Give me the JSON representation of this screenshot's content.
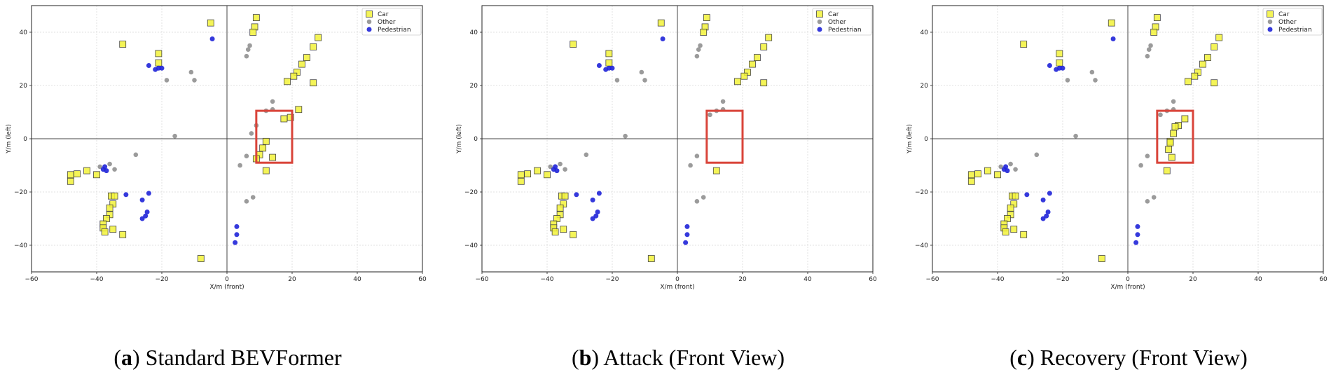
{
  "shared": {
    "type": "scatter",
    "xlabel": "X/m (front)",
    "ylabel": "Y/m (left)",
    "xlim": [
      -60,
      60
    ],
    "ylim": [
      -50,
      50
    ],
    "xticks": [
      -60,
      -40,
      -20,
      0,
      20,
      40,
      60
    ],
    "yticks": [
      -40,
      -20,
      0,
      20,
      40
    ],
    "grid": true,
    "legend": "top-right",
    "colors": {
      "Car": "#f2f23a",
      "Other": "#8a8a8a",
      "Pedestrian": "#1f24d8",
      "box": "#d9443a"
    }
  },
  "chart_data": [
    {
      "caption_letter": "a",
      "caption_text": " Standard BEVFormer",
      "highlight_box": {
        "x0": 9,
        "x1": 20,
        "y0": -9,
        "y1": 10.5
      },
      "series": [
        {
          "name": "Car",
          "points": [
            [
              -48,
              -13.5
            ],
            [
              -48,
              -16
            ],
            [
              -46,
              -13.2
            ],
            [
              -43,
              -12
            ],
            [
              -40,
              -13.5
            ],
            [
              -32,
              35.5
            ],
            [
              -21,
              32
            ],
            [
              -21,
              28.5
            ],
            [
              -35.5,
              -21.5
            ],
            [
              -34.5,
              -21.5
            ],
            [
              -35,
              -24.5
            ],
            [
              -36,
              -26
            ],
            [
              -36,
              -28.5
            ],
            [
              -37,
              -30
            ],
            [
              -38,
              -32
            ],
            [
              -38,
              -33.5
            ],
            [
              -37.5,
              -35
            ],
            [
              -35,
              -34
            ],
            [
              -32,
              -36
            ],
            [
              -5,
              43.5
            ],
            [
              -8,
              -45
            ],
            [
              9,
              45.5
            ],
            [
              8.5,
              42
            ],
            [
              8,
              40
            ],
            [
              28,
              38
            ],
            [
              26.5,
              34.5
            ],
            [
              24.5,
              30.5
            ],
            [
              23,
              28
            ],
            [
              21.5,
              25
            ],
            [
              20.5,
              23.5
            ],
            [
              18.5,
              21.5
            ],
            [
              26.5,
              21
            ],
            [
              22,
              11
            ],
            [
              17.5,
              7.5
            ],
            [
              19.5,
              8
            ],
            [
              12,
              -1
            ],
            [
              11,
              -3.5
            ],
            [
              10,
              -6
            ],
            [
              9,
              -7.5
            ],
            [
              14,
              -7
            ],
            [
              12,
              -12
            ]
          ]
        },
        {
          "name": "Other",
          "points": [
            [
              6,
              31
            ],
            [
              6.5,
              33.5
            ],
            [
              7,
              35
            ],
            [
              -11,
              25
            ],
            [
              -10,
              22
            ],
            [
              -18.5,
              22
            ],
            [
              -39,
              -10.5
            ],
            [
              -36,
              -9.5
            ],
            [
              -34.5,
              -11.5
            ],
            [
              -28,
              -6
            ],
            [
              -16,
              1
            ],
            [
              7.5,
              2
            ],
            [
              6,
              -6.5
            ],
            [
              4,
              -10
            ],
            [
              6,
              -23.5
            ],
            [
              8,
              -22
            ],
            [
              12,
              10.5
            ],
            [
              14,
              11
            ],
            [
              14,
              14
            ],
            [
              9,
              5
            ]
          ]
        },
        {
          "name": "Pedestrian",
          "points": [
            [
              -24,
              27.5
            ],
            [
              -22,
              26
            ],
            [
              -21,
              26.5
            ],
            [
              -20,
              26.5
            ],
            [
              -38,
              -11.5
            ],
            [
              -37,
              -12
            ],
            [
              -37.5,
              -10.5
            ],
            [
              -31,
              -21
            ],
            [
              -26,
              -23
            ],
            [
              -24,
              -20.5
            ],
            [
              -24.5,
              -27.5
            ],
            [
              -25,
              -29
            ],
            [
              -26,
              -30
            ],
            [
              -4.5,
              37.5
            ],
            [
              3,
              -33
            ],
            [
              3,
              -36
            ],
            [
              2.5,
              -39
            ]
          ]
        }
      ]
    },
    {
      "caption_letter": "b",
      "caption_text": " Attack (Front View)",
      "highlight_box": {
        "x0": 9,
        "x1": 20,
        "y0": -9,
        "y1": 10.5
      },
      "series": [
        {
          "name": "Car",
          "points": [
            [
              -48,
              -13.5
            ],
            [
              -48,
              -16
            ],
            [
              -46,
              -13.2
            ],
            [
              -43,
              -12
            ],
            [
              -40,
              -13.5
            ],
            [
              -32,
              35.5
            ],
            [
              -21,
              32
            ],
            [
              -21,
              28.5
            ],
            [
              -35.5,
              -21.5
            ],
            [
              -34.5,
              -21.5
            ],
            [
              -35,
              -24.5
            ],
            [
              -36,
              -26
            ],
            [
              -36,
              -28.5
            ],
            [
              -37,
              -30
            ],
            [
              -38,
              -32
            ],
            [
              -38,
              -33.5
            ],
            [
              -37.5,
              -35
            ],
            [
              -35,
              -34
            ],
            [
              -32,
              -36
            ],
            [
              -5,
              43.5
            ],
            [
              -8,
              -45
            ],
            [
              9,
              45.5
            ],
            [
              8.5,
              42
            ],
            [
              8,
              40
            ],
            [
              28,
              38
            ],
            [
              26.5,
              34.5
            ],
            [
              24.5,
              30.5
            ],
            [
              23,
              28
            ],
            [
              21.5,
              25
            ],
            [
              20.5,
              23.5
            ],
            [
              18.5,
              21.5
            ],
            [
              26.5,
              21
            ],
            [
              12,
              -12
            ]
          ]
        },
        {
          "name": "Other",
          "points": [
            [
              6,
              31
            ],
            [
              6.5,
              33.5
            ],
            [
              7,
              35
            ],
            [
              -11,
              25
            ],
            [
              -10,
              22
            ],
            [
              -18.5,
              22
            ],
            [
              -39,
              -10.5
            ],
            [
              -36,
              -9.5
            ],
            [
              -34.5,
              -11.5
            ],
            [
              -28,
              -6
            ],
            [
              -16,
              1
            ],
            [
              6,
              -6.5
            ],
            [
              4,
              -10
            ],
            [
              6,
              -23.5
            ],
            [
              8,
              -22
            ],
            [
              12,
              10.5
            ],
            [
              14,
              11
            ],
            [
              14,
              14
            ],
            [
              10,
              9
            ]
          ]
        },
        {
          "name": "Pedestrian",
          "points": [
            [
              -24,
              27.5
            ],
            [
              -22,
              26
            ],
            [
              -21,
              26.5
            ],
            [
              -20,
              26.5
            ],
            [
              -38,
              -11.5
            ],
            [
              -37,
              -12
            ],
            [
              -37.5,
              -10.5
            ],
            [
              -31,
              -21
            ],
            [
              -26,
              -23
            ],
            [
              -24,
              -20.5
            ],
            [
              -24.5,
              -27.5
            ],
            [
              -25,
              -29
            ],
            [
              -26,
              -30
            ],
            [
              -4.5,
              37.5
            ],
            [
              3,
              -33
            ],
            [
              3,
              -36
            ],
            [
              2.5,
              -39
            ]
          ]
        }
      ]
    },
    {
      "caption_letter": "c",
      "caption_text": " Recovery (Front View)",
      "highlight_box": {
        "x0": 9,
        "x1": 20,
        "y0": -9,
        "y1": 10.5
      },
      "series": [
        {
          "name": "Car",
          "points": [
            [
              -48,
              -13.5
            ],
            [
              -48,
              -16
            ],
            [
              -46,
              -13.2
            ],
            [
              -43,
              -12
            ],
            [
              -40,
              -13.5
            ],
            [
              -32,
              35.5
            ],
            [
              -21,
              32
            ],
            [
              -21,
              28.5
            ],
            [
              -35.5,
              -21.5
            ],
            [
              -34.5,
              -21.5
            ],
            [
              -35,
              -24.5
            ],
            [
              -36,
              -26
            ],
            [
              -36,
              -28.5
            ],
            [
              -37,
              -30
            ],
            [
              -38,
              -32
            ],
            [
              -38,
              -33.5
            ],
            [
              -37.5,
              -35
            ],
            [
              -35,
              -34
            ],
            [
              -32,
              -36
            ],
            [
              -5,
              43.5
            ],
            [
              -8,
              -45
            ],
            [
              9,
              45.5
            ],
            [
              8.5,
              42
            ],
            [
              8,
              40
            ],
            [
              28,
              38
            ],
            [
              26.5,
              34.5
            ],
            [
              24.5,
              30.5
            ],
            [
              23,
              28
            ],
            [
              21.5,
              25
            ],
            [
              20.5,
              23.5
            ],
            [
              18.5,
              21.5
            ],
            [
              26.5,
              21
            ],
            [
              17.5,
              7.5
            ],
            [
              15.5,
              5
            ],
            [
              14.5,
              4.5
            ],
            [
              14,
              2
            ],
            [
              13,
              -1
            ],
            [
              13,
              -1.5
            ],
            [
              12.5,
              -4
            ],
            [
              13.5,
              -7
            ],
            [
              12,
              -12
            ]
          ]
        },
        {
          "name": "Other",
          "points": [
            [
              6,
              31
            ],
            [
              6.5,
              33.5
            ],
            [
              7,
              35
            ],
            [
              -11,
              25
            ],
            [
              -10,
              22
            ],
            [
              -18.5,
              22
            ],
            [
              -39,
              -10.5
            ],
            [
              -36,
              -9.5
            ],
            [
              -34.5,
              -11.5
            ],
            [
              -28,
              -6
            ],
            [
              -16,
              1
            ],
            [
              6,
              -6.5
            ],
            [
              4,
              -10
            ],
            [
              6,
              -23.5
            ],
            [
              8,
              -22
            ],
            [
              12,
              10.5
            ],
            [
              14,
              11
            ],
            [
              14,
              14
            ],
            [
              10,
              9
            ]
          ]
        },
        {
          "name": "Pedestrian",
          "points": [
            [
              -24,
              27.5
            ],
            [
              -22,
              26
            ],
            [
              -21,
              26.5
            ],
            [
              -20,
              26.5
            ],
            [
              -38,
              -11.5
            ],
            [
              -37,
              -12
            ],
            [
              -37.5,
              -10.5
            ],
            [
              -31,
              -21
            ],
            [
              -26,
              -23
            ],
            [
              -24,
              -20.5
            ],
            [
              -24.5,
              -27.5
            ],
            [
              -25,
              -29
            ],
            [
              -26,
              -30
            ],
            [
              -4.5,
              37.5
            ],
            [
              3,
              -33
            ],
            [
              3,
              -36
            ],
            [
              2.5,
              -39
            ]
          ]
        }
      ]
    }
  ]
}
